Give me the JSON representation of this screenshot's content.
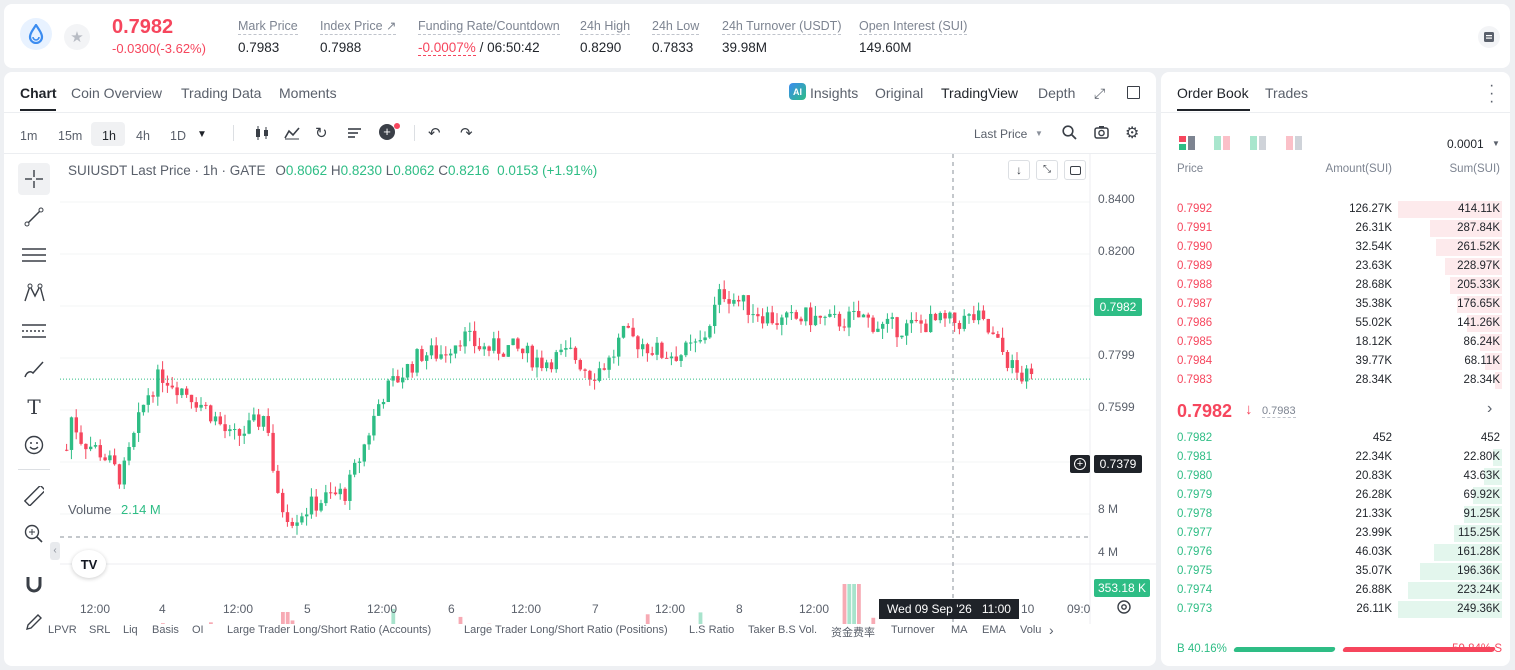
{
  "header": {
    "price": "0.7982",
    "change": "-0.0300(-3.62%)",
    "stats": [
      {
        "label": "Mark Price",
        "value": "0.7983"
      },
      {
        "label": "Index Price ↗",
        "value": "0.7988"
      },
      {
        "label": "Funding Rate/Countdown",
        "value": "-0.0007%",
        "value2": "/ 06:50:42"
      },
      {
        "label": "24h High",
        "value": "0.8290"
      },
      {
        "label": "24h Low",
        "value": "0.7833"
      },
      {
        "label": "24h Turnover (USDT)",
        "value": "39.98M"
      },
      {
        "label": "Open Interest (SUI)",
        "value": "149.60M"
      }
    ]
  },
  "chart_tabs": [
    "Chart",
    "Coin Overview",
    "Trading Data",
    "Moments"
  ],
  "view_tabs": [
    "Insights",
    "Original",
    "TradingView",
    "Depth"
  ],
  "intervals": [
    "1m",
    "15m",
    "1h",
    "4h",
    "1D"
  ],
  "last_price_select": "Last Price",
  "legend": {
    "symbol": "SUIUSDT Last Price · 1h · GATE",
    "o_label": "O",
    "o": "0.8062",
    "h_label": "H",
    "h": "0.8230",
    "l_label": "L",
    "l": "0.8062",
    "c_label": "C",
    "c": "0.8216",
    "chg": "0.0153 (+1.91%)"
  },
  "volume_legend": {
    "label": "Volume",
    "value": "2.14 M"
  },
  "price_axis": [
    "0.8400",
    "0.8200",
    "0.7799",
    "0.7599"
  ],
  "price_badges": {
    "last": "0.7982",
    "cross": "0.7379"
  },
  "volume_axis": [
    "8 M",
    "4 M"
  ],
  "volume_badge": "353.18 K",
  "time_axis": [
    "12:00",
    "4",
    "12:00",
    "5",
    "12:00",
    "6",
    "12:00",
    "7",
    "12:00",
    "8",
    "12:00",
    "10",
    "09:0"
  ],
  "cross_time": "Wed 09 Sep '26   11:00",
  "bottom_tabs": [
    "LPVR",
    "SRL",
    "Liq",
    "Basis",
    "OI",
    "Large Trader Long/Short Ratio (Accounts)",
    "Large Trader Long/Short Ratio (Positions)",
    "L.S Ratio",
    "Taker B.S Vol.",
    "资金费率",
    "Turnover",
    "MA",
    "EMA",
    "Volu"
  ],
  "order_book": {
    "tabs": [
      "Order Book",
      "Trades"
    ],
    "precision": "0.0001",
    "headers": [
      "Price",
      "Amount(SUI)",
      "Sum(SUI)"
    ],
    "asks": [
      {
        "price": "0.7992",
        "amount": "126.27K",
        "sum": "414.11K",
        "depth": 1.0
      },
      {
        "price": "0.7991",
        "amount": "26.31K",
        "sum": "287.84K",
        "depth": 0.69
      },
      {
        "price": "0.7990",
        "amount": "32.54K",
        "sum": "261.52K",
        "depth": 0.63
      },
      {
        "price": "0.7989",
        "amount": "23.63K",
        "sum": "228.97K",
        "depth": 0.55
      },
      {
        "price": "0.7988",
        "amount": "28.68K",
        "sum": "205.33K",
        "depth": 0.5
      },
      {
        "price": "0.7987",
        "amount": "35.38K",
        "sum": "176.65K",
        "depth": 0.43
      },
      {
        "price": "0.7986",
        "amount": "55.02K",
        "sum": "141.26K",
        "depth": 0.34
      },
      {
        "price": "0.7985",
        "amount": "18.12K",
        "sum": "86.24K",
        "depth": 0.21
      },
      {
        "price": "0.7984",
        "amount": "39.77K",
        "sum": "68.11K",
        "depth": 0.16
      },
      {
        "price": "0.7983",
        "amount": "28.34K",
        "sum": "28.34K",
        "depth": 0.07
      }
    ],
    "mid_price": "0.7982",
    "mid_arrow": "↓",
    "mid_mark": "0.7983",
    "bids": [
      {
        "price": "0.7982",
        "amount": "452",
        "sum": "452",
        "depth": 0.0
      },
      {
        "price": "0.7981",
        "amount": "22.34K",
        "sum": "22.80K",
        "depth": 0.09
      },
      {
        "price": "0.7980",
        "amount": "20.83K",
        "sum": "43.63K",
        "depth": 0.17
      },
      {
        "price": "0.7979",
        "amount": "26.28K",
        "sum": "69.92K",
        "depth": 0.28
      },
      {
        "price": "0.7978",
        "amount": "21.33K",
        "sum": "91.25K",
        "depth": 0.37
      },
      {
        "price": "0.7977",
        "amount": "23.99K",
        "sum": "115.25K",
        "depth": 0.46
      },
      {
        "price": "0.7976",
        "amount": "46.03K",
        "sum": "161.28K",
        "depth": 0.65
      },
      {
        "price": "0.7975",
        "amount": "35.07K",
        "sum": "196.36K",
        "depth": 0.79
      },
      {
        "price": "0.7974",
        "amount": "26.88K",
        "sum": "223.24K",
        "depth": 0.9
      },
      {
        "price": "0.7973",
        "amount": "26.11K",
        "sum": "249.36K",
        "depth": 1.0
      }
    ],
    "buy_ratio": "B 40.16%",
    "sell_ratio": "59.84% S",
    "buy_fraction": 0.4016
  },
  "colors": {
    "up": "#2ebd85",
    "down": "#f6465d",
    "accent": "#1f2329"
  }
}
